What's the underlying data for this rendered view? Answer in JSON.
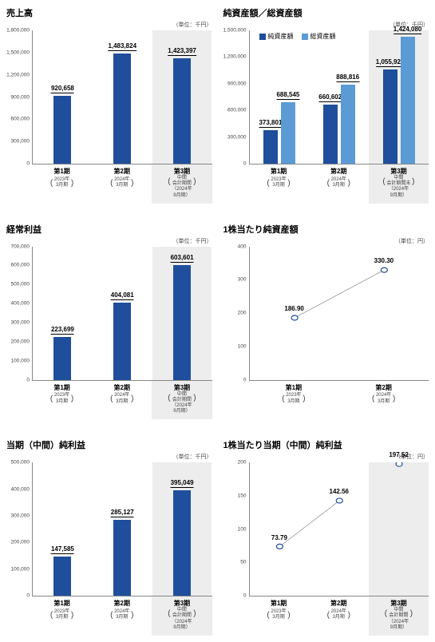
{
  "colors": {
    "bar_primary": "#1f4e9c",
    "bar_secondary": "#5b9bd5",
    "highlight_bg": "#ededed",
    "axis": "#888888",
    "point_fill": "#ffffff",
    "point_stroke": "#1f4e9c",
    "line_stroke": "#888888"
  },
  "panels": [
    {
      "id": "sales",
      "title": "売上高",
      "unit": "（単位：千円）",
      "type": "bar",
      "ymax": 1800000,
      "ytick_step": 300000,
      "series_count": 1,
      "categories": [
        {
          "main": "第1期",
          "sub": [
            "2023年",
            "3月期"
          ],
          "values": [
            920658
          ],
          "labels": [
            "920,658"
          ],
          "highlight": false
        },
        {
          "main": "第2期",
          "sub": [
            "2024年",
            "3月期"
          ],
          "values": [
            1483824
          ],
          "labels": [
            "1,483,824"
          ],
          "highlight": false
        },
        {
          "main": "第3期",
          "sub": [
            "中間",
            "会計期間",
            "（2024年",
            "9月期）"
          ],
          "values": [
            1423397
          ],
          "labels": [
            "1,423,397"
          ],
          "highlight": true
        }
      ]
    },
    {
      "id": "assets",
      "title": "純資産額／総資産額",
      "unit": "（単位：千円）",
      "type": "bar",
      "ymax": 1500000,
      "ytick_step": 300000,
      "series_count": 2,
      "legend": [
        {
          "label": "純資産額",
          "color": "#1f4e9c"
        },
        {
          "label": "総資産額",
          "color": "#5b9bd5"
        }
      ],
      "categories": [
        {
          "main": "第1期",
          "sub": [
            "2023年",
            "3月期"
          ],
          "values": [
            373801,
            688545
          ],
          "labels": [
            "373,801",
            "688,545"
          ],
          "highlight": false
        },
        {
          "main": "第2期",
          "sub": [
            "2024年",
            "3月期"
          ],
          "values": [
            660602,
            888816
          ],
          "labels": [
            "660,602",
            "888,816"
          ],
          "highlight": false
        },
        {
          "main": "第3期",
          "sub": [
            "中間",
            "会計期間末",
            "（2024年",
            "9月期）"
          ],
          "values": [
            1055929,
            1424080
          ],
          "labels": [
            "1,055,929",
            "1,424,080"
          ],
          "highlight": true
        }
      ]
    },
    {
      "id": "ordinary",
      "title": "経常利益",
      "unit": "（単位：千円）",
      "type": "bar",
      "ymax": 700000,
      "ytick_step": 100000,
      "series_count": 1,
      "categories": [
        {
          "main": "第1期",
          "sub": [
            "2023年",
            "3月期"
          ],
          "values": [
            223699
          ],
          "labels": [
            "223,699"
          ],
          "highlight": false
        },
        {
          "main": "第2期",
          "sub": [
            "2024年",
            "3月期"
          ],
          "values": [
            404081
          ],
          "labels": [
            "404,081"
          ],
          "highlight": false
        },
        {
          "main": "第3期",
          "sub": [
            "中間",
            "会計期間",
            "（2024年",
            "9月期）"
          ],
          "values": [
            603601
          ],
          "labels": [
            "603,601"
          ],
          "highlight": true
        }
      ]
    },
    {
      "id": "nav_per_share",
      "title": "1株当たり純資産額",
      "unit": "（単位：円）",
      "type": "line",
      "ymax": 400,
      "ytick_step": 100,
      "categories": [
        {
          "main": "第1期",
          "sub": [
            "2023年",
            "3月期"
          ],
          "values": [
            186.9
          ],
          "labels": [
            "186.90"
          ],
          "highlight": false
        },
        {
          "main": "第2期",
          "sub": [
            "2024年",
            "3月期"
          ],
          "values": [
            330.3
          ],
          "labels": [
            "330.30"
          ],
          "highlight": false
        }
      ]
    },
    {
      "id": "net_income",
      "title": "当期（中間）純利益",
      "unit": "（単位：千円）",
      "type": "bar",
      "ymax": 500000,
      "ytick_step": 100000,
      "series_count": 1,
      "categories": [
        {
          "main": "第1期",
          "sub": [
            "2023年",
            "3月期"
          ],
          "values": [
            147585
          ],
          "labels": [
            "147,585"
          ],
          "highlight": false
        },
        {
          "main": "第2期",
          "sub": [
            "2024年",
            "3月期"
          ],
          "values": [
            285127
          ],
          "labels": [
            "285,127"
          ],
          "highlight": false
        },
        {
          "main": "第3期",
          "sub": [
            "中間",
            "会計期間",
            "（2024年",
            "9月期）"
          ],
          "values": [
            395049
          ],
          "labels": [
            "395,049"
          ],
          "highlight": true
        }
      ]
    },
    {
      "id": "eps",
      "title": "1株当たり当期（中間）純利益",
      "unit": "（単位：円）",
      "type": "line",
      "ymax": 200,
      "ytick_step": 50,
      "categories": [
        {
          "main": "第1期",
          "sub": [
            "2023年",
            "3月期"
          ],
          "values": [
            73.79
          ],
          "labels": [
            "73.79"
          ],
          "highlight": false
        },
        {
          "main": "第2期",
          "sub": [
            "2024年",
            "3月期"
          ],
          "values": [
            142.56
          ],
          "labels": [
            "142.56"
          ],
          "highlight": false
        },
        {
          "main": "第3期",
          "sub": [
            "中間",
            "会計期間",
            "（2024年",
            "9月期）"
          ],
          "values": [
            197.52
          ],
          "labels": [
            "197.52"
          ],
          "highlight": true
        }
      ]
    }
  ]
}
